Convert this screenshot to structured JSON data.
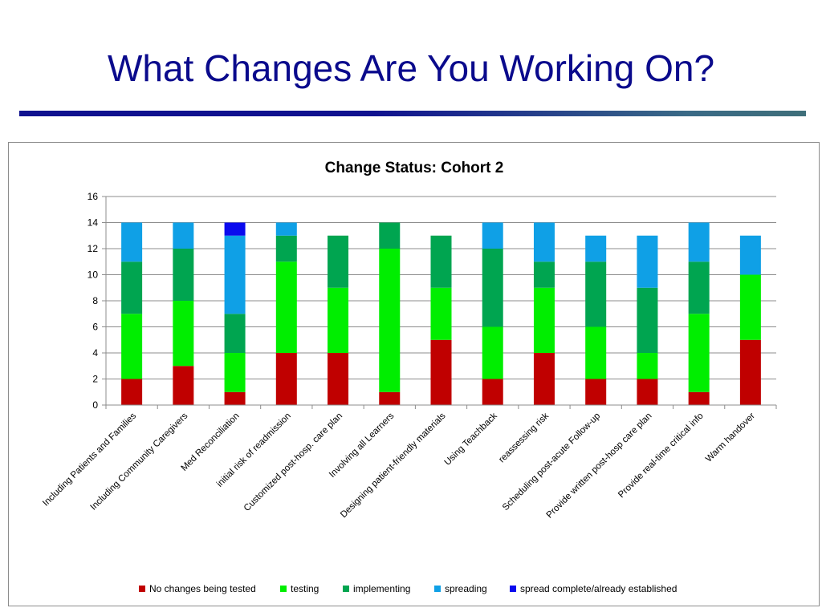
{
  "slide": {
    "title": "What Changes Are You Working On?"
  },
  "chart_data": {
    "type": "bar",
    "stacked": true,
    "title": "Change Status:  Cohort 2",
    "xlabel": "",
    "ylabel": "",
    "ylim": [
      0,
      16
    ],
    "yticks": [
      0,
      2,
      4,
      6,
      8,
      10,
      12,
      14,
      16
    ],
    "grid": true,
    "legend_position": "bottom",
    "categories": [
      "Including Patients and Families",
      "Including Community Caregivers",
      "Med Reconciliation",
      "initial risk of readmission",
      "Customized post-hosp. care plan",
      "Involving all Learners",
      "Designing patient-friendly materials",
      "Using Teachback",
      "reassessing risk",
      "Scheduling post-acute Follow-up",
      "Provide written post-hosp care plan",
      "Provide real-time critical info",
      "Warm handover"
    ],
    "series": [
      {
        "name": "No changes being tested",
        "color": "#c00000",
        "values": [
          2,
          3,
          1,
          4,
          4,
          1,
          5,
          2,
          4,
          2,
          2,
          1,
          5
        ]
      },
      {
        "name": "testing",
        "color": "#00ee00",
        "values": [
          5,
          5,
          3,
          7,
          5,
          11,
          4,
          4,
          5,
          4,
          2,
          6,
          5
        ]
      },
      {
        "name": "implementing",
        "color": "#00a550",
        "values": [
          4,
          4,
          3,
          2,
          4,
          2,
          4,
          6,
          2,
          5,
          5,
          4,
          0
        ]
      },
      {
        "name": "spreading",
        "color": "#0fa0e6",
        "values": [
          3,
          2,
          6,
          1,
          0,
          0,
          0,
          2,
          3,
          2,
          4,
          3,
          3
        ]
      },
      {
        "name": "spread complete/already established",
        "color": "#0a0aee",
        "values": [
          0,
          0,
          1,
          0,
          0,
          0,
          0,
          0,
          0,
          0,
          0,
          0,
          0
        ]
      }
    ]
  }
}
